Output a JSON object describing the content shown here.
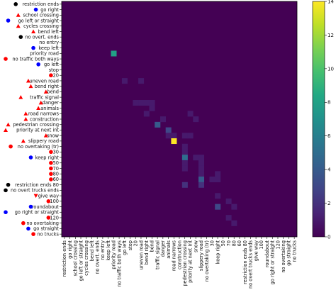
{
  "chart_data": {
    "type": "heatmap",
    "title": "",
    "xlabel": "",
    "ylabel": "",
    "labels": [
      "restriction ends",
      "go right",
      "school crossing",
      "go left or straight",
      "cycles crossing",
      "bend left",
      "no overt. ends",
      "no entry",
      "keep left",
      "priority road",
      "no traffic both ways",
      "go left",
      "stop",
      "20",
      "uneven road",
      "bend right",
      "bend",
      "traffic signal",
      "danger",
      "animals",
      "road narrows",
      "construction",
      "pedestrian crossing",
      "priority at next int",
      "snow",
      "slippery road",
      "no overtaking (tr)",
      "30",
      "keep right",
      "50",
      "70",
      "80",
      "60",
      "restriction ends 80",
      "no overt trucks ends",
      "give way",
      "100",
      "roundabout",
      "go right or straight",
      "120",
      "no overtaking",
      "go straight",
      "no trucks"
    ],
    "y_markers": [
      {
        "shape": "circle",
        "color": "#000000"
      },
      {
        "shape": "circle",
        "color": "#0000ff"
      },
      {
        "shape": "triangle",
        "color": "#ff0000"
      },
      {
        "shape": "circle",
        "color": "#0000ff"
      },
      {
        "shape": "triangle",
        "color": "#ff0000"
      },
      {
        "shape": "triangle",
        "color": "#ff0000"
      },
      {
        "shape": "circle",
        "color": "#000000"
      },
      {
        "shape": "none",
        "color": ""
      },
      {
        "shape": "circle",
        "color": "#0000ff"
      },
      {
        "shape": "none",
        "color": ""
      },
      {
        "shape": "circle",
        "color": "#ff0000"
      },
      {
        "shape": "circle",
        "color": "#0000ff"
      },
      {
        "shape": "none",
        "color": ""
      },
      {
        "shape": "circle",
        "color": "#ff0000"
      },
      {
        "shape": "triangle",
        "color": "#ff0000"
      },
      {
        "shape": "triangle",
        "color": "#ff0000"
      },
      {
        "shape": "triangle",
        "color": "#ff0000"
      },
      {
        "shape": "triangle",
        "color": "#ff0000"
      },
      {
        "shape": "triangle",
        "color": "#ff0000"
      },
      {
        "shape": "triangle",
        "color": "#ff0000"
      },
      {
        "shape": "triangle",
        "color": "#ff0000"
      },
      {
        "shape": "triangle",
        "color": "#ff0000"
      },
      {
        "shape": "triangle",
        "color": "#ff0000"
      },
      {
        "shape": "triangle",
        "color": "#ff0000"
      },
      {
        "shape": "triangle",
        "color": "#ff0000"
      },
      {
        "shape": "triangle",
        "color": "#ff0000"
      },
      {
        "shape": "circle",
        "color": "#ff0000"
      },
      {
        "shape": "circle",
        "color": "#ff0000"
      },
      {
        "shape": "circle",
        "color": "#0000ff"
      },
      {
        "shape": "circle",
        "color": "#ff0000"
      },
      {
        "shape": "circle",
        "color": "#ff0000"
      },
      {
        "shape": "circle",
        "color": "#ff0000"
      },
      {
        "shape": "circle",
        "color": "#ff0000"
      },
      {
        "shape": "circle",
        "color": "#000000"
      },
      {
        "shape": "circle",
        "color": "#000000"
      },
      {
        "shape": "down-triangle",
        "color": "#ff0000"
      },
      {
        "shape": "circle",
        "color": "#ff0000"
      },
      {
        "shape": "circle",
        "color": "#0000ff"
      },
      {
        "shape": "circle",
        "color": "#0000ff"
      },
      {
        "shape": "circle",
        "color": "#ff0000"
      },
      {
        "shape": "circle",
        "color": "#ff0000"
      },
      {
        "shape": "circle",
        "color": "#0000ff"
      },
      {
        "shape": "circle",
        "color": "#ff0000"
      }
    ],
    "cells": [
      {
        "row": 9,
        "col": 9,
        "value": 8
      },
      {
        "row": 14,
        "col": 11,
        "value": 1
      },
      {
        "row": 14,
        "col": 14,
        "value": 1
      },
      {
        "row": 18,
        "col": 13,
        "value": 1
      },
      {
        "row": 18,
        "col": 14,
        "value": 1
      },
      {
        "row": 18,
        "col": 15,
        "value": 1
      },
      {
        "row": 18,
        "col": 16,
        "value": 1
      },
      {
        "row": 19,
        "col": 16,
        "value": 1
      },
      {
        "row": 20,
        "col": 15,
        "value": 1
      },
      {
        "row": 20,
        "col": 23,
        "value": 1
      },
      {
        "row": 21,
        "col": 18,
        "value": 1
      },
      {
        "row": 21,
        "col": 24,
        "value": 1
      },
      {
        "row": 22,
        "col": 17,
        "value": 4
      },
      {
        "row": 23,
        "col": 19,
        "value": 3
      },
      {
        "row": 24,
        "col": 19,
        "value": 1
      },
      {
        "row": 24,
        "col": 20,
        "value": 1
      },
      {
        "row": 24,
        "col": 22,
        "value": 1
      },
      {
        "row": 24,
        "col": 23,
        "value": 1
      },
      {
        "row": 25,
        "col": 20,
        "value": 14
      },
      {
        "row": 26,
        "col": 22,
        "value": 1
      },
      {
        "row": 27,
        "col": 22,
        "value": 1
      },
      {
        "row": 28,
        "col": 22,
        "value": 5
      },
      {
        "row": 28,
        "col": 24,
        "value": 1
      },
      {
        "row": 28,
        "col": 25,
        "value": 1
      },
      {
        "row": 29,
        "col": 22,
        "value": 1
      },
      {
        "row": 29,
        "col": 25,
        "value": 1
      },
      {
        "row": 30,
        "col": 22,
        "value": 1
      },
      {
        "row": 30,
        "col": 25,
        "value": 1
      },
      {
        "row": 31,
        "col": 25,
        "value": 1
      },
      {
        "row": 31,
        "col": 28,
        "value": 1
      },
      {
        "row": 32,
        "col": 25,
        "value": 4
      },
      {
        "row": 32,
        "col": 27,
        "value": 1
      },
      {
        "row": 32,
        "col": 28,
        "value": 1
      },
      {
        "row": 33,
        "col": 22,
        "value": 2
      },
      {
        "row": 33,
        "col": 25,
        "value": 2
      },
      {
        "row": 35,
        "col": 28,
        "value": 1
      },
      {
        "row": 36,
        "col": 30,
        "value": 1
      },
      {
        "row": 37,
        "col": 28,
        "value": 3
      },
      {
        "row": 37,
        "col": 31,
        "value": 1
      },
      {
        "row": 39,
        "col": 30,
        "value": 1
      },
      {
        "row": 40,
        "col": 31,
        "value": 1
      }
    ],
    "colorbar": {
      "min": 0,
      "max": 14,
      "ticks": [
        "0",
        "2",
        "4",
        "6",
        "8",
        "10",
        "12",
        "14"
      ],
      "colormap": "viridis"
    },
    "grid": false
  }
}
